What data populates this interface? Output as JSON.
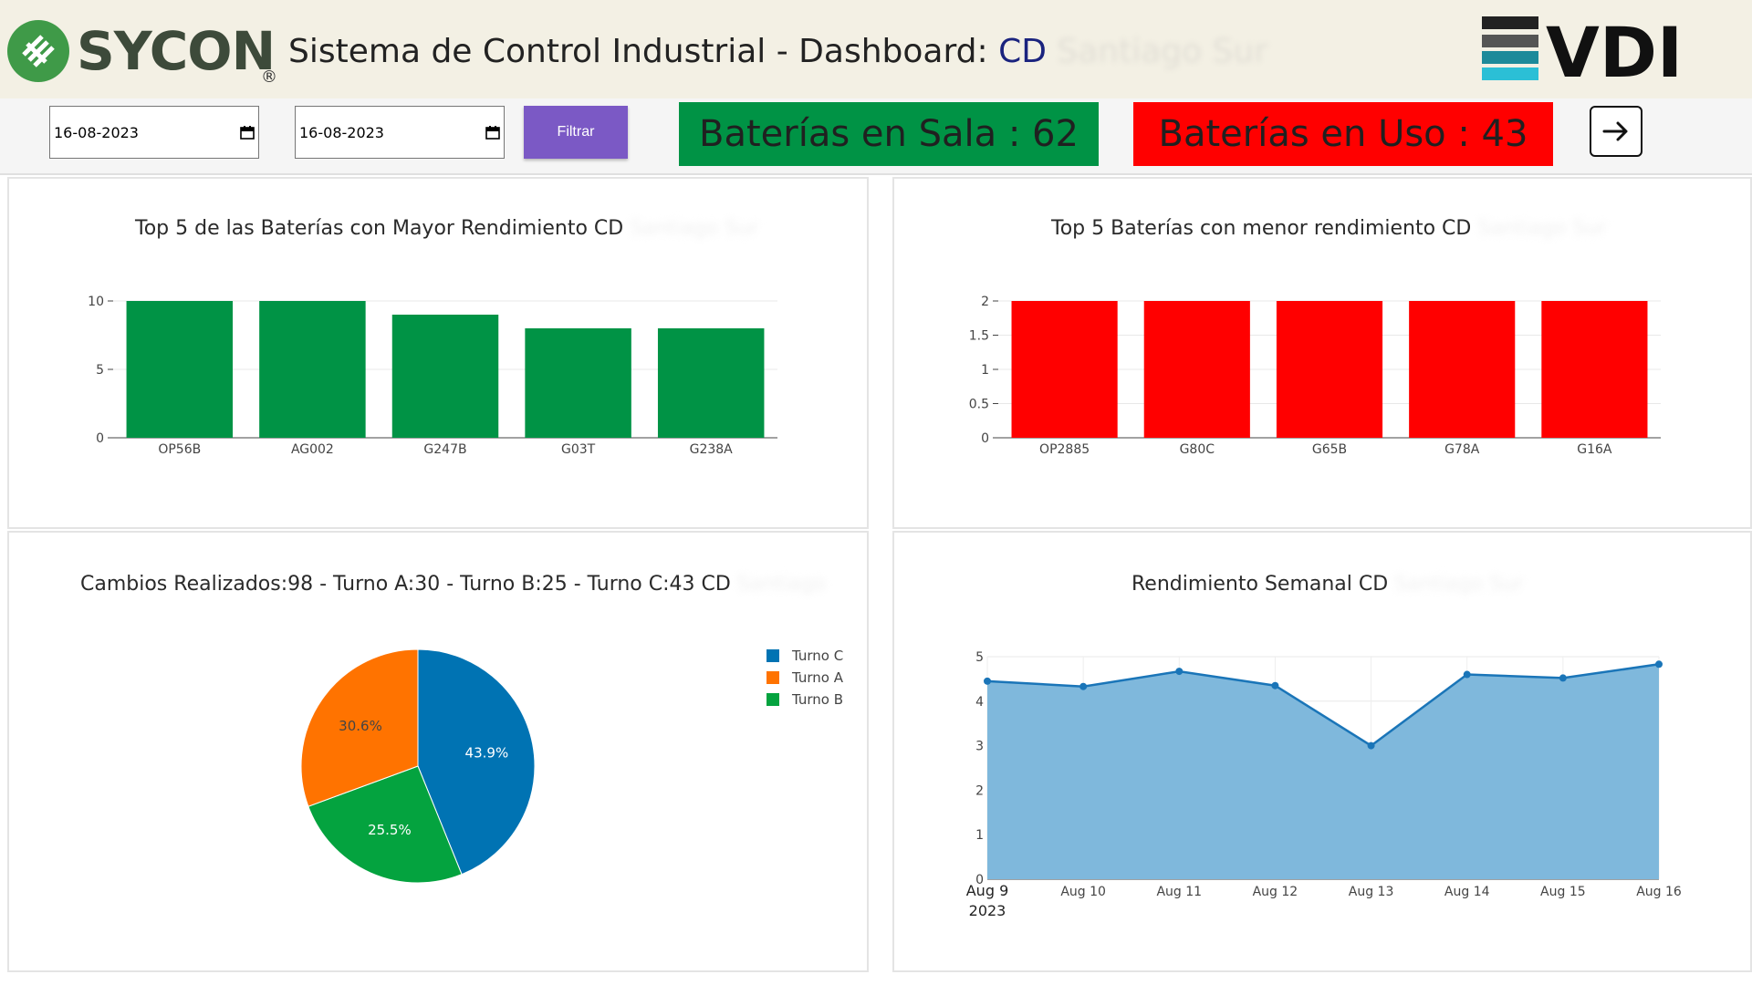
{
  "header": {
    "brand": "SYCON",
    "registered": "®",
    "title_prefix": "Sistema de Control Industrial - Dashboard: ",
    "title_location": "CD",
    "title_location_rest": "Santiago Sur",
    "right_logo": "VDI",
    "brand_color": "#3d4a3a",
    "location_color": "#1a237e"
  },
  "filters": {
    "date_from": "16-08-2023",
    "date_to": "16-08-2023",
    "filter_label": "Filtrar"
  },
  "stats": {
    "sala": "Baterías en Sala : 62",
    "uso": "Baterías en Uso : 43",
    "sala_color": "#009345",
    "uso_color": "#ff0000"
  },
  "exit_icon": "arrow-right-icon",
  "panels": {
    "top": {
      "title": "Top 5 de las Baterías con Mayor Rendimiento CD",
      "title_rest": "Santiago Sur"
    },
    "bottom": {
      "title": "Top 5 Baterías con menor rendimiento CD",
      "title_rest": "Santiago Sur"
    },
    "pie": {
      "title": "Cambios Realizados:98 - Turno A:30 - Turno B:25 - Turno C:43 CD",
      "title_rest": "Santiago"
    },
    "weekly": {
      "title": "Rendimiento Semanal CD",
      "title_rest": "Santiago Sur"
    }
  },
  "chart_data": [
    {
      "type": "bar",
      "categories": [
        "OP56B",
        "AG002",
        "G247B",
        "G03T",
        "G238A"
      ],
      "values": [
        10,
        10,
        9,
        8,
        8
      ],
      "yticks": [
        "0",
        "5",
        "10"
      ],
      "ylim": [
        0,
        10
      ],
      "color": "#009345"
    },
    {
      "type": "bar",
      "categories": [
        "OP2885",
        "G80C",
        "G65B",
        "G78A",
        "G16A"
      ],
      "values": [
        2,
        2,
        2,
        2,
        2
      ],
      "yticks": [
        "0",
        "0.5",
        "1",
        "1.5",
        "2"
      ],
      "ylim": [
        0,
        2
      ],
      "color": "#ff0000"
    },
    {
      "type": "pie",
      "slices": [
        {
          "name": "Turno C",
          "value": 43,
          "label": "43.9%",
          "color": "#0073b3"
        },
        {
          "name": "Turno B",
          "value": 25,
          "label": "25.5%",
          "color": "#04a33f"
        },
        {
          "name": "Turno A",
          "value": 30,
          "label": "30.6%",
          "color": "#ff7300"
        }
      ],
      "legend": [
        "Turno C",
        "Turno A",
        "Turno B"
      ],
      "legend_colors": [
        "#0073b3",
        "#ff7300",
        "#04a33f"
      ],
      "legend_placement": "top-right"
    },
    {
      "type": "area",
      "x": [
        "Aug 9",
        "Aug 10",
        "Aug 11",
        "Aug 12",
        "Aug 13",
        "Aug 14",
        "Aug 15",
        "Aug 16"
      ],
      "x_year": "2023",
      "values": [
        4.45,
        4.33,
        4.67,
        4.35,
        3.0,
        4.6,
        4.52,
        4.83
      ],
      "yticks": [
        "0",
        "1",
        "2",
        "3",
        "4",
        "5"
      ],
      "ylim": [
        0,
        5
      ],
      "line_color": "#1a75b8",
      "fill_color": "#7fb8dc"
    }
  ]
}
